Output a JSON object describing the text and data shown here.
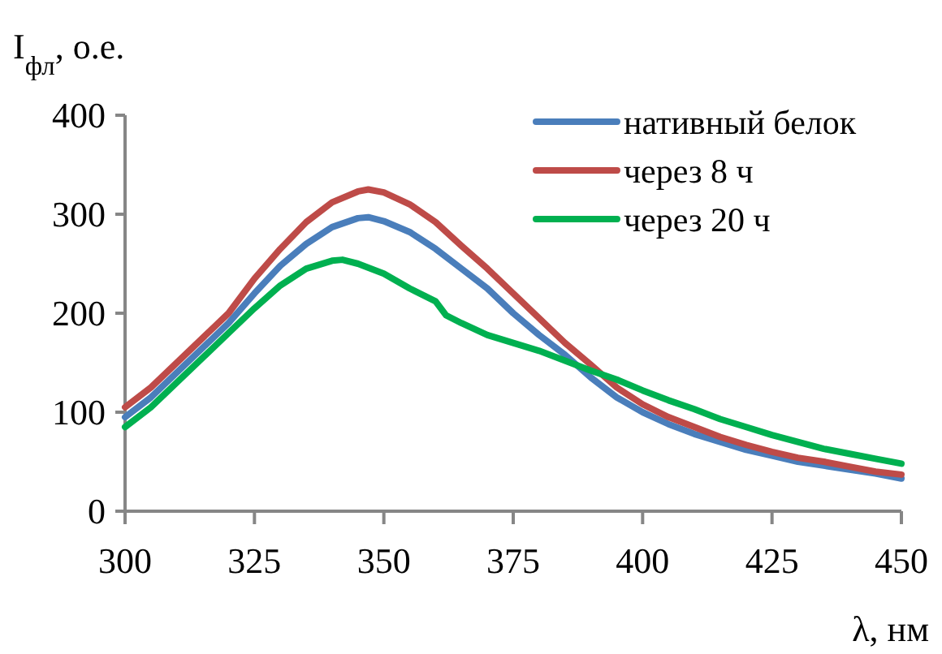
{
  "chart_data": {
    "type": "line",
    "xlabel": "λ, нм",
    "ylabel": "I$_{фл}$, о.е.",
    "xlim": [
      300,
      450
    ],
    "xticks": [
      300,
      325,
      350,
      375,
      400,
      425,
      450
    ],
    "ylim": [
      0,
      400
    ],
    "yticks": [
      0,
      100,
      200,
      300,
      400
    ],
    "grid": false,
    "legend": "top right",
    "marker": "none",
    "line_style": "solid",
    "x": [
      300,
      305,
      310,
      315,
      320,
      325,
      330,
      335,
      340,
      345,
      347,
      350,
      355,
      360,
      365,
      370,
      375,
      380,
      385,
      390,
      395,
      400,
      405,
      410,
      415,
      420,
      425,
      430,
      435,
      440,
      445,
      450
    ],
    "series": [
      {
        "name": "нативный белок",
        "color": "#4a7ebb",
        "values": [
          95,
          115,
          140,
          165,
          190,
          220,
          248,
          270,
          287,
          296,
          297,
          293,
          282,
          265,
          245,
          225,
          200,
          178,
          158,
          135,
          115,
          100,
          88,
          78,
          70,
          62,
          56,
          50,
          46,
          42,
          38,
          33
        ]
      },
      {
        "name": "через 8 ч",
        "color": "#be4b48",
        "values": [
          105,
          125,
          150,
          175,
          200,
          235,
          265,
          292,
          312,
          323,
          325,
          322,
          310,
          292,
          268,
          245,
          220,
          195,
          170,
          148,
          125,
          108,
          95,
          85,
          75,
          67,
          60,
          54,
          50,
          45,
          40,
          37
        ]
      },
      {
        "name": "через 20 ч",
        "color": "#00b050",
        "x": [
          300,
          305,
          310,
          315,
          320,
          325,
          330,
          335,
          340,
          342,
          345,
          350,
          355,
          360,
          362,
          365,
          370,
          375,
          380,
          385,
          390,
          395,
          400,
          405,
          410,
          415,
          420,
          425,
          430,
          435,
          440,
          445,
          450
        ],
        "values": [
          85,
          105,
          130,
          155,
          180,
          205,
          228,
          245,
          253,
          254,
          250,
          240,
          225,
          212,
          198,
          190,
          178,
          170,
          162,
          152,
          142,
          133,
          122,
          112,
          103,
          93,
          85,
          77,
          70,
          63,
          58,
          53,
          48
        ]
      }
    ]
  }
}
